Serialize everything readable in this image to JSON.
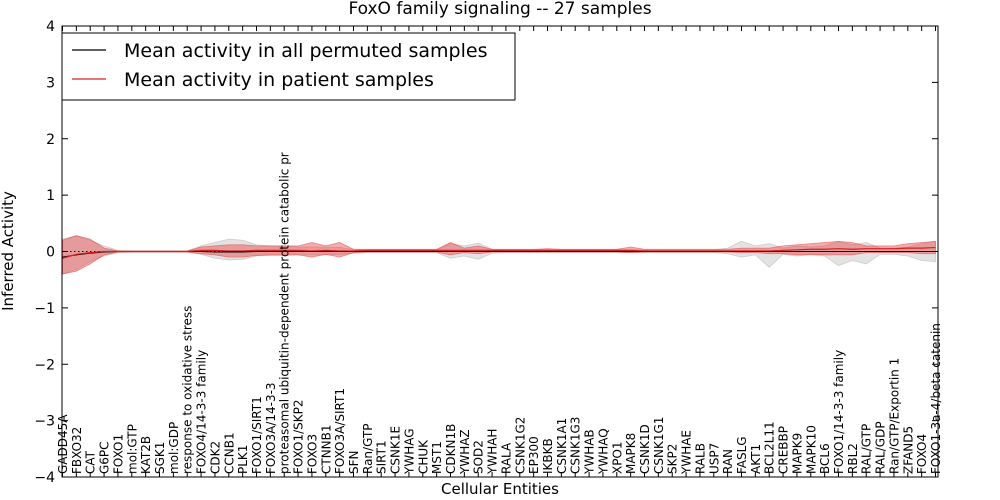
{
  "chart_data": {
    "type": "line",
    "title": "FoxO family signaling -- 27 samples",
    "xlabel": "Cellular Entities",
    "ylabel": "Inferred Activity",
    "ylim": [
      -4,
      4
    ],
    "yticks": [
      -4,
      -3,
      -2,
      -1,
      0,
      1,
      2,
      3,
      4
    ],
    "ytick_labels": [
      "−4",
      "−3",
      "−2",
      "−1",
      "0",
      "1",
      "2",
      "3",
      "4"
    ],
    "grid": false,
    "legend_position": "top-left",
    "legend": [
      {
        "label": "Mean activity in all permuted samples",
        "color": "#000000"
      },
      {
        "label": "Mean activity in patient samples",
        "color": "#d62020"
      }
    ],
    "categories": [
      "GADD45A",
      "FBXO32",
      "CAT",
      "G6PC",
      "FOXO1",
      "mol:GTP",
      "KAT2B",
      "SGK1",
      "mol:GDP",
      "response to oxidative stress",
      "FOXO4/14-3-3 family",
      "CDK2",
      "CCNB1",
      "PLK1",
      "FOXO1/SIRT1",
      "FOXO3A/14-3-3",
      "proteasomal ubiquitin-dependent protein catabolic pr",
      "FOXO1/SKP2",
      "FOXO3",
      "CTNNB1",
      "FOXO3A/SIRT1",
      "SFN",
      "Ran/GTP",
      "SIRT1",
      "CSNK1E",
      "YWHAG",
      "CHUK",
      "MST1",
      "CDKN1B",
      "YWHAZ",
      "SOD2",
      "YWHAH",
      "RALA",
      "CSNK1G2",
      "EP300",
      "IKBKB",
      "CSNK1A1",
      "CSNK1G3",
      "YWHAB",
      "YWHAQ",
      "XPO1",
      "MAPK8",
      "CSNK1D",
      "CSNK1G1",
      "SKP2",
      "YWHAE",
      "RALB",
      "USP7",
      "RAN",
      "FASLG",
      "AKT1",
      "BCL2L11",
      "CREBBP",
      "MAPK9",
      "MAPK10",
      "BCL6",
      "FOXO1/14-3-3 family",
      "RBL2",
      "RAL/GTP",
      "RAL/GDP",
      "Ran/GTP/Exportin 1",
      "ZFAND5",
      "FOXO4",
      "FOXO1-3a-4/beta catenin"
    ],
    "series": [
      {
        "name": "Mean activity in all permuted samples",
        "color": "#000000",
        "values": [
          -0.1,
          -0.06,
          -0.03,
          -0.01,
          0.0,
          0.0,
          0.0,
          0.0,
          0.0,
          0.0,
          0.0,
          -0.01,
          -0.01,
          -0.01,
          0.0,
          0.0,
          0.0,
          0.0,
          0.0,
          0.0,
          0.0,
          0.0,
          0.0,
          0.0,
          0.0,
          0.0,
          0.0,
          0.0,
          0.0,
          0.0,
          0.0,
          0.0,
          0.0,
          0.0,
          0.0,
          0.0,
          0.0,
          0.0,
          0.0,
          0.0,
          0.0,
          0.0,
          0.0,
          0.0,
          0.0,
          0.0,
          0.0,
          0.0,
          0.0,
          0.0,
          0.0,
          0.0,
          0.0,
          0.0,
          0.0,
          0.0,
          0.0,
          0.0,
          0.0,
          0.0,
          0.0,
          0.0,
          0.0,
          0.0
        ],
        "lower": [
          -0.4,
          -0.32,
          -0.18,
          -0.08,
          -0.02,
          -0.01,
          -0.01,
          -0.01,
          -0.01,
          -0.01,
          -0.05,
          -0.12,
          -0.15,
          -0.14,
          -0.08,
          -0.07,
          -0.07,
          -0.06,
          -0.06,
          -0.06,
          -0.05,
          -0.03,
          -0.02,
          -0.02,
          -0.02,
          -0.02,
          -0.02,
          -0.02,
          -0.12,
          -0.08,
          -0.14,
          -0.03,
          -0.02,
          -0.02,
          -0.02,
          -0.02,
          -0.02,
          -0.02,
          -0.02,
          -0.02,
          -0.02,
          -0.02,
          -0.02,
          -0.02,
          -0.02,
          -0.02,
          -0.02,
          -0.02,
          -0.04,
          -0.1,
          -0.06,
          -0.28,
          -0.05,
          -0.08,
          -0.06,
          -0.08,
          -0.25,
          -0.16,
          -0.22,
          -0.05,
          -0.05,
          -0.08,
          -0.16,
          -0.18
        ],
        "upper": [
          0.22,
          0.28,
          0.2,
          0.1,
          0.02,
          0.01,
          0.01,
          0.01,
          0.01,
          0.01,
          0.1,
          0.16,
          0.22,
          0.2,
          0.12,
          0.1,
          0.1,
          0.08,
          0.08,
          0.08,
          0.07,
          0.04,
          0.03,
          0.03,
          0.03,
          0.03,
          0.03,
          0.03,
          0.14,
          0.1,
          0.15,
          0.04,
          0.03,
          0.03,
          0.03,
          0.03,
          0.03,
          0.03,
          0.03,
          0.03,
          0.03,
          0.03,
          0.03,
          0.03,
          0.03,
          0.03,
          0.03,
          0.03,
          0.06,
          0.18,
          0.1,
          0.14,
          0.06,
          0.1,
          0.08,
          0.1,
          0.18,
          0.12,
          0.16,
          0.06,
          0.06,
          0.08,
          0.14,
          0.18
        ]
      },
      {
        "name": "Mean activity in patient samples",
        "color": "#d62020",
        "values": [
          -0.12,
          -0.05,
          -0.02,
          0.0,
          0.0,
          0.0,
          0.0,
          0.0,
          0.0,
          0.0,
          0.02,
          0.02,
          0.01,
          0.01,
          0.02,
          0.02,
          0.02,
          0.02,
          0.01,
          0.02,
          0.01,
          0.01,
          0.02,
          0.02,
          0.02,
          0.02,
          0.02,
          0.02,
          0.02,
          0.02,
          0.02,
          0.02,
          0.02,
          0.02,
          0.02,
          0.02,
          0.02,
          0.02,
          0.02,
          0.02,
          0.02,
          0.02,
          0.01,
          0.01,
          0.01,
          0.01,
          0.01,
          0.01,
          0.01,
          0.01,
          0.01,
          0.01,
          0.02,
          0.03,
          0.04,
          0.04,
          0.05,
          0.04,
          0.05,
          0.05,
          0.05,
          0.06,
          0.06,
          0.07
        ],
        "lower": [
          -0.4,
          -0.35,
          -0.22,
          -0.06,
          -0.01,
          -0.01,
          -0.01,
          -0.01,
          -0.01,
          -0.01,
          -0.04,
          -0.06,
          -0.1,
          -0.1,
          -0.07,
          -0.06,
          -0.06,
          -0.06,
          -0.1,
          -0.05,
          -0.1,
          -0.02,
          -0.01,
          -0.01,
          -0.01,
          -0.01,
          -0.01,
          -0.01,
          -0.06,
          -0.02,
          -0.04,
          -0.01,
          -0.01,
          -0.01,
          -0.01,
          -0.01,
          -0.01,
          -0.01,
          -0.01,
          -0.01,
          -0.01,
          -0.02,
          -0.01,
          -0.01,
          -0.01,
          -0.01,
          -0.01,
          -0.01,
          -0.01,
          -0.02,
          -0.02,
          -0.04,
          -0.04,
          -0.06,
          -0.05,
          -0.06,
          -0.06,
          -0.06,
          -0.02,
          -0.02,
          -0.02,
          -0.02,
          -0.04,
          -0.04
        ],
        "upper": [
          0.2,
          0.28,
          0.22,
          0.06,
          0.01,
          0.01,
          0.01,
          0.01,
          0.01,
          0.01,
          0.08,
          0.1,
          0.12,
          0.12,
          0.1,
          0.1,
          0.1,
          0.1,
          0.16,
          0.1,
          0.16,
          0.04,
          0.04,
          0.04,
          0.04,
          0.04,
          0.04,
          0.04,
          0.16,
          0.06,
          0.1,
          0.04,
          0.04,
          0.04,
          0.04,
          0.05,
          0.04,
          0.04,
          0.04,
          0.04,
          0.04,
          0.08,
          0.04,
          0.04,
          0.04,
          0.04,
          0.04,
          0.04,
          0.04,
          0.06,
          0.06,
          0.06,
          0.1,
          0.12,
          0.14,
          0.16,
          0.18,
          0.16,
          0.1,
          0.1,
          0.1,
          0.14,
          0.16,
          0.18
        ]
      }
    ]
  }
}
